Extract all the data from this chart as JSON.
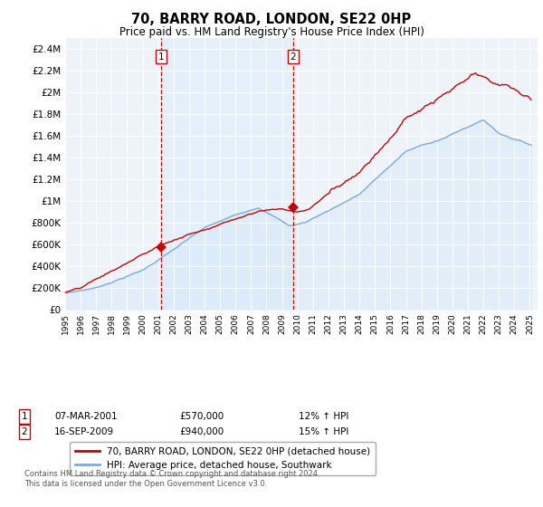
{
  "title": "70, BARRY ROAD, LONDON, SE22 0HP",
  "subtitle": "Price paid vs. HM Land Registry's House Price Index (HPI)",
  "ylabel_ticks": [
    "£0",
    "£200K",
    "£400K",
    "£600K",
    "£800K",
    "£1M",
    "£1.2M",
    "£1.4M",
    "£1.6M",
    "£1.8M",
    "£2M",
    "£2.2M",
    "£2.4M"
  ],
  "ytick_vals": [
    0,
    200000,
    400000,
    600000,
    800000,
    1000000,
    1200000,
    1400000,
    1600000,
    1800000,
    2000000,
    2200000,
    2400000
  ],
  "ylim": [
    0,
    2500000
  ],
  "xlim_start": 1995.0,
  "xlim_end": 2025.5,
  "xtick_years": [
    1995,
    1996,
    1997,
    1998,
    1999,
    2000,
    2001,
    2002,
    2003,
    2004,
    2005,
    2006,
    2007,
    2008,
    2009,
    2010,
    2011,
    2012,
    2013,
    2014,
    2015,
    2016,
    2017,
    2018,
    2019,
    2020,
    2021,
    2022,
    2023,
    2024,
    2025
  ],
  "marker1_x": 2001.18,
  "marker1_y": 570000,
  "marker2_x": 2009.71,
  "marker2_y": 940000,
  "vline1_x": 2001.18,
  "vline2_x": 2009.71,
  "property_color": "#cc0000",
  "hpi_color": "#7aabdb",
  "hpi_fill_color": "#d6e8f7",
  "vline_color": "#cc0000",
  "shade_color": "#ddeeff",
  "background_color": "#eef3fa",
  "legend1": "70, BARRY ROAD, LONDON, SE22 0HP (detached house)",
  "legend2": "HPI: Average price, detached house, Southwark",
  "annotation1_date": "07-MAR-2001",
  "annotation1_price": "£570,000",
  "annotation1_hpi": "12% ↑ HPI",
  "annotation2_date": "16-SEP-2009",
  "annotation2_price": "£940,000",
  "annotation2_hpi": "15% ↑ HPI",
  "footer": "Contains HM Land Registry data © Crown copyright and database right 2024.\nThis data is licensed under the Open Government Licence v3.0."
}
